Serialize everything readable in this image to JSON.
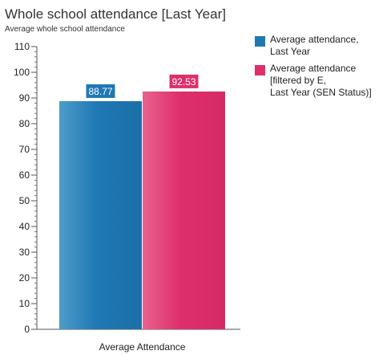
{
  "chart_data": {
    "type": "bar",
    "title": "Whole school attendance [Last Year]",
    "subtitle": "Average whole school attendance",
    "categories": [
      "Average Attendance"
    ],
    "series": [
      {
        "name": "Average attendance,\nLast Year",
        "values": [
          88.77
        ],
        "data_label": "88.77",
        "color": "#1f78b4"
      },
      {
        "name": "Average attendance\n[filtered by E,\nLast Year (SEN Status)]",
        "values": [
          92.53
        ],
        "data_label": "92.53",
        "color": "#de2f6c"
      }
    ],
    "xlabel": "",
    "ylabel": "",
    "ylim": [
      0,
      110
    ],
    "y_ticks": [
      "0",
      "10",
      "20",
      "30",
      "40",
      "50",
      "60",
      "70",
      "80",
      "90",
      "100",
      "110"
    ],
    "grid": false,
    "legend": "right"
  }
}
